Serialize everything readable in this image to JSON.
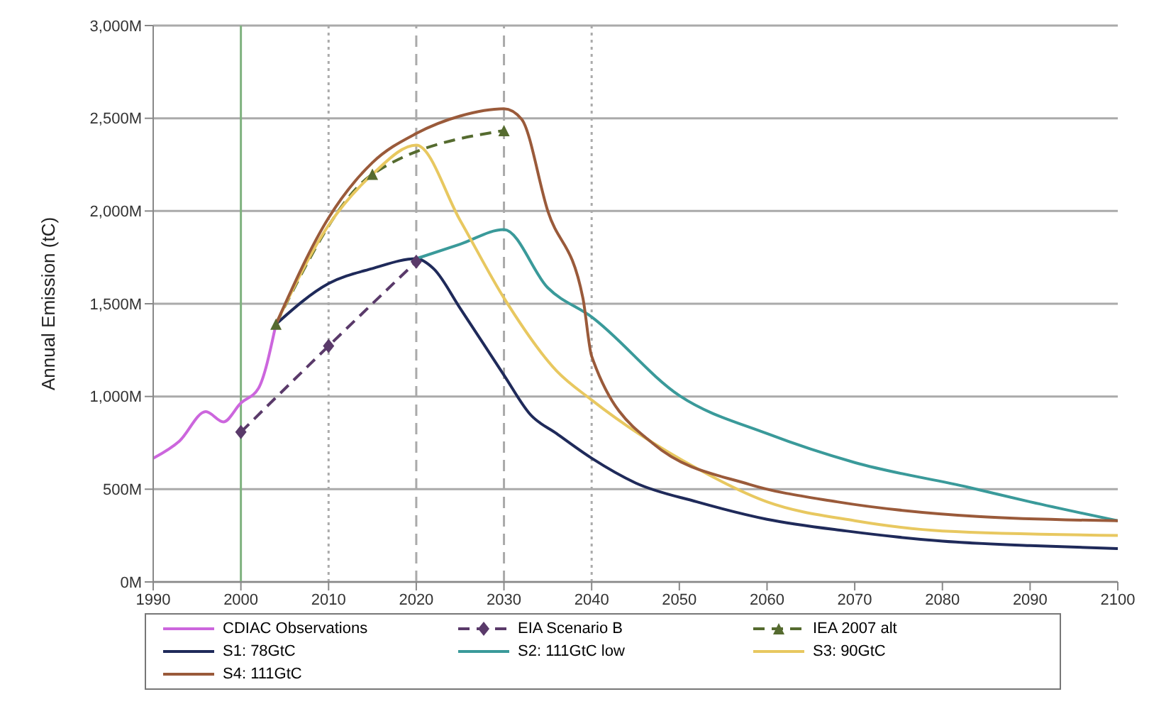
{
  "chart_data": {
    "type": "line",
    "ylabel": "Annual Emission (tC)",
    "xlim": [
      1990,
      2100
    ],
    "xticks": [
      1990,
      2000,
      2010,
      2020,
      2030,
      2040,
      2050,
      2060,
      2070,
      2080,
      2090,
      2100
    ],
    "ylim": [
      0,
      3000
    ],
    "yticks": [
      {
        "value": 0,
        "label": "0M"
      },
      {
        "value": 500,
        "label": "500M"
      },
      {
        "value": 1000,
        "label": "1,000M"
      },
      {
        "value": 1500,
        "label": "1,500M"
      },
      {
        "value": 2000,
        "label": "2,000M"
      },
      {
        "value": 2500,
        "label": "2,500M"
      },
      {
        "value": 3000,
        "label": "3,000M"
      }
    ],
    "grid": "y",
    "legend": "bottom",
    "marker": "none",
    "line_style": "solid",
    "ref_lines": [
      {
        "axis": "x",
        "value": 2000,
        "color": "#7fb27f",
        "line_style": "solid"
      },
      {
        "axis": "x",
        "value": 2010,
        "color": "#aaaaaa",
        "line_style": "dotted"
      },
      {
        "axis": "x",
        "value": 2020,
        "color": "#aaaaaa",
        "line_style": "dashed"
      },
      {
        "axis": "x",
        "value": 2030,
        "color": "#aaaaaa",
        "line_style": "dashed"
      },
      {
        "axis": "x",
        "value": 2040,
        "color": "#aaaaaa",
        "line_style": "dotted"
      }
    ],
    "series": [
      {
        "name": "CDIAC Observations",
        "color": "#cc66dd",
        "x": [
          1990,
          1993,
          1996,
          1998,
          2000,
          2002,
          2004
        ],
        "values": [
          667,
          760,
          918,
          863,
          965,
          1044,
          1390
        ]
      },
      {
        "name": "EIA Scenario B",
        "color": "#5a3a6a",
        "marker": "diamond",
        "line_style": "dashed",
        "x": [
          2000,
          2010,
          2020
        ],
        "values": [
          808,
          1272,
          1727
        ]
      },
      {
        "name": "IEA 2007 alt",
        "color": "#556b2f",
        "marker": "triangle",
        "line_style": "dashed",
        "x": [
          2004,
          2015,
          2030
        ],
        "values": [
          1390,
          2198,
          2434
        ]
      },
      {
        "name": "S1: 78GtC",
        "color": "#1f2a5a",
        "x": [
          2004,
          2010,
          2015,
          2020,
          2022,
          2025,
          2030,
          2033,
          2036,
          2040,
          2045,
          2052,
          2060,
          2069,
          2080,
          2090,
          2100
        ],
        "values": [
          1390,
          1609,
          1690,
          1743,
          1688,
          1476,
          1115,
          903,
          800,
          667,
          534,
          432,
          338,
          275,
          220,
          196,
          180
        ]
      },
      {
        "name": "S2: 111GtC low",
        "color": "#3a9a9a",
        "x": [
          2020,
          2025,
          2030,
          2035,
          2040,
          2050,
          2060,
          2070,
          2083,
          2090,
          2100
        ],
        "values": [
          1743,
          1821,
          1900,
          1586,
          1429,
          1005,
          800,
          644,
          510,
          432,
          330
        ]
      },
      {
        "name": "S3: 90GtC",
        "color": "#e8c860",
        "x": [
          2004,
          2010,
          2015,
          2020,
          2025,
          2030,
          2036,
          2040,
          2052,
          2060,
          2070,
          2080,
          2100
        ],
        "values": [
          1390,
          1923,
          2198,
          2355,
          1950,
          1531,
          1138,
          981,
          612,
          432,
          330,
          275,
          251
        ]
      },
      {
        "name": "S4: 111GtC",
        "color": "#9a5a3a",
        "x": [
          2004,
          2010,
          2015,
          2020,
          2025,
          2030,
          2032,
          2035,
          2039,
          2040,
          2047,
          2058,
          2068,
          2084,
          2100
        ],
        "values": [
          1390,
          1963,
          2261,
          2418,
          2512,
          2551,
          2496,
          2000,
          1531,
          1217,
          746,
          526,
          432,
          353,
          330
        ]
      }
    ]
  }
}
